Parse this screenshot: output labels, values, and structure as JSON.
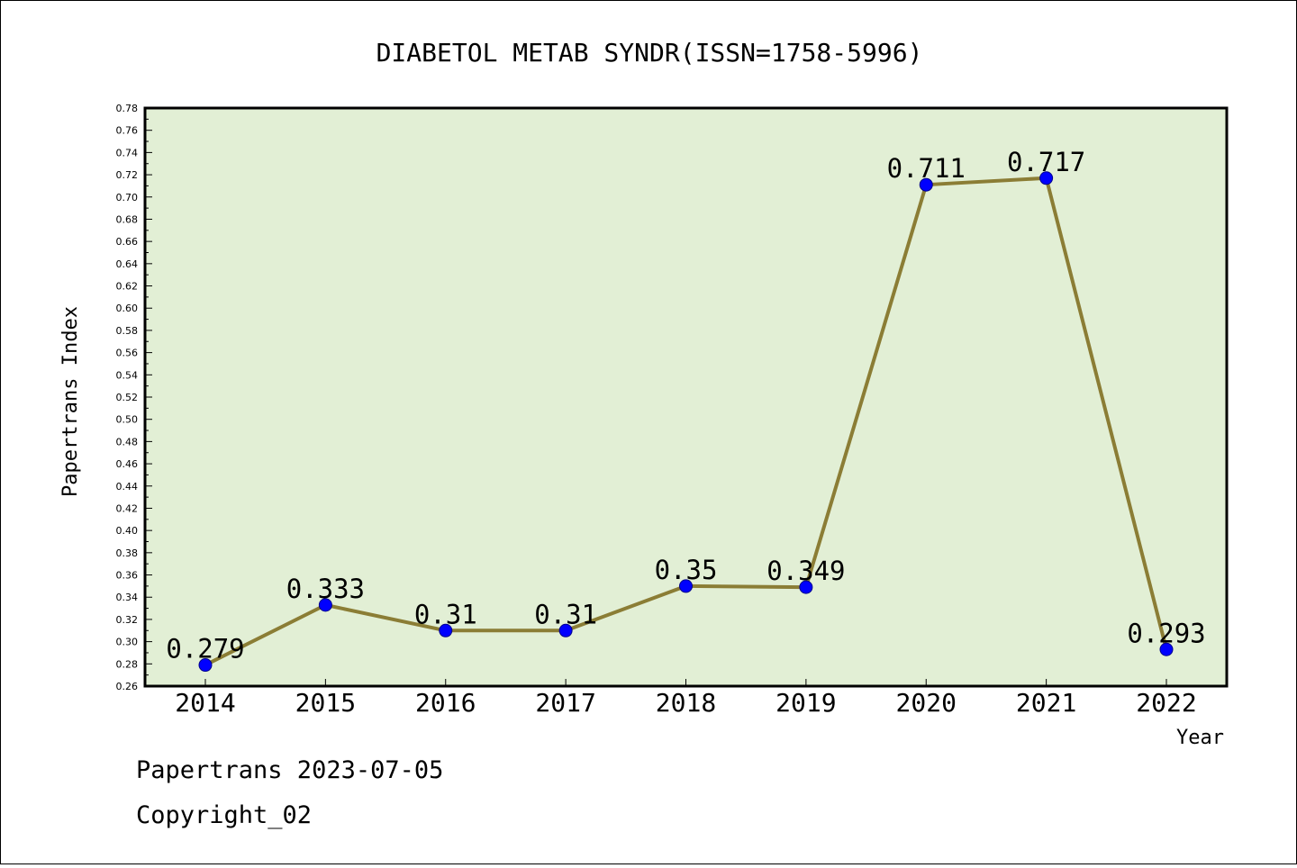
{
  "title": "DIABETOL METAB SYNDR(ISSN=1758-5996)",
  "footer": {
    "line1": "Papertrans 2023-07-05",
    "line2": "Copyright_02"
  },
  "colors": {
    "plot_bg": "#e2efd5",
    "line": "#8b7d35",
    "marker": "#0000ff"
  },
  "chart_data": {
    "type": "line",
    "title": "DIABETOL METAB SYNDR(ISSN=1758-5996)",
    "xlabel": "Year",
    "ylabel": "Papertrans Index",
    "categories": [
      "2014",
      "2015",
      "2016",
      "2017",
      "2018",
      "2019",
      "2020",
      "2021",
      "2022"
    ],
    "values": [
      0.279,
      0.333,
      0.31,
      0.31,
      0.35,
      0.349,
      0.711,
      0.717,
      0.293
    ],
    "labels": [
      "0.279",
      "0.333",
      "0.31",
      "0.31",
      "0.35",
      "0.349",
      "0.711",
      "0.717",
      "0.293"
    ],
    "ylim": [
      0.26,
      0.78
    ],
    "ytick_step": 0.02,
    "grid": false,
    "legend": "none"
  }
}
